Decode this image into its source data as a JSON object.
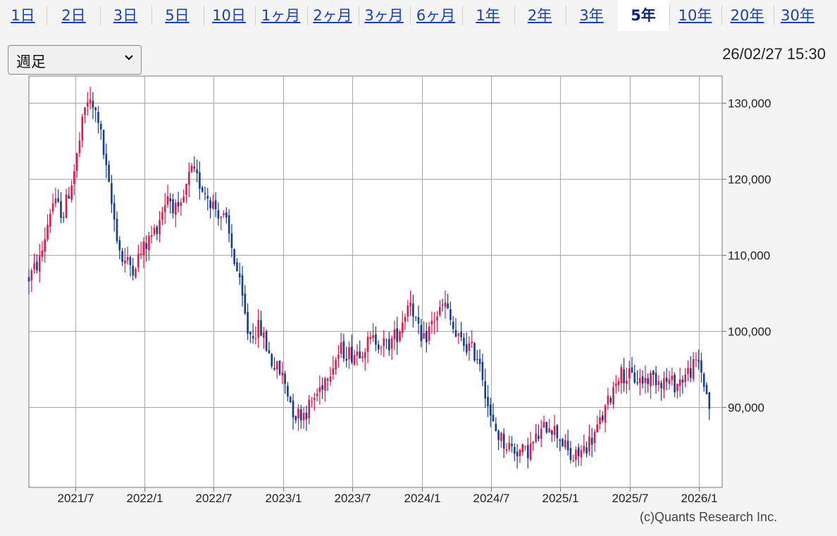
{
  "tabs": [
    {
      "label": "1日",
      "active": false
    },
    {
      "label": "2日",
      "active": false
    },
    {
      "label": "3日",
      "active": false
    },
    {
      "label": "5日",
      "active": false
    },
    {
      "label": "10日",
      "active": false
    },
    {
      "label": "1ヶ月",
      "active": false
    },
    {
      "label": "2ヶ月",
      "active": false
    },
    {
      "label": "3ヶ月",
      "active": false
    },
    {
      "label": "6ヶ月",
      "active": false
    },
    {
      "label": "1年",
      "active": false
    },
    {
      "label": "2年",
      "active": false
    },
    {
      "label": "3年",
      "active": false
    },
    {
      "label": "5年",
      "active": true
    },
    {
      "label": "10年",
      "active": false
    },
    {
      "label": "20年",
      "active": false
    },
    {
      "label": "30年",
      "active": false
    }
  ],
  "interval_select": {
    "value": "週足"
  },
  "timestamp": "26/02/27 15:30",
  "copyright": "(c)Quants Research Inc.",
  "colors": {
    "up": "#e8174a",
    "down": "#123c96",
    "grid": "#a8a8a8",
    "plot_bg": "#ffffff"
  },
  "chart_data": {
    "type": "candlestick",
    "x_ticks": [
      "2021/7",
      "2022/1",
      "2022/7",
      "2023/1",
      "2023/7",
      "2024/1",
      "2024/7",
      "2025/1",
      "2025/7",
      "2026/1"
    ],
    "y_ticks": [
      "130,000",
      "120,000",
      "110,000",
      "100,000",
      "90,000"
    ],
    "y_tick_values": [
      130000,
      120000,
      110000,
      100000,
      90000
    ],
    "ylim": [
      79500,
      133500
    ],
    "x_range": [
      "2021/3",
      "2026/3"
    ],
    "grid": true,
    "weekly_close_path": [
      [
        "2021/3",
        107000
      ],
      [
        "2021/4",
        109500
      ],
      [
        "2021/5",
        117000
      ],
      [
        "2021/6",
        115500
      ],
      [
        "2021/7",
        121500
      ],
      [
        "2021/8",
        130500
      ],
      [
        "2021/9",
        128000
      ],
      [
        "2021/10",
        118000
      ],
      [
        "2021/11",
        109500
      ],
      [
        "2021/12",
        108500
      ],
      [
        "2022/1",
        111000
      ],
      [
        "2022/2",
        113500
      ],
      [
        "2022/3",
        118000
      ],
      [
        "2022/4",
        115000
      ],
      [
        "2022/5",
        121000
      ],
      [
        "2022/6",
        119000
      ],
      [
        "2022/7",
        116500
      ],
      [
        "2022/8",
        114500
      ],
      [
        "2022/9",
        108000
      ],
      [
        "2022/10",
        99500
      ],
      [
        "2022/11",
        100500
      ],
      [
        "2022/12",
        96000
      ],
      [
        "2023/1",
        94000
      ],
      [
        "2023/2",
        89000
      ],
      [
        "2023/3",
        89500
      ],
      [
        "2023/4",
        92000
      ],
      [
        "2023/5",
        95000
      ],
      [
        "2023/6",
        97500
      ],
      [
        "2023/7",
        97000
      ],
      [
        "2023/8",
        98000
      ],
      [
        "2023/9",
        99000
      ],
      [
        "2023/10",
        98000
      ],
      [
        "2023/11",
        100000
      ],
      [
        "2023/12",
        104500
      ],
      [
        "2024/1",
        98000
      ],
      [
        "2024/2",
        101500
      ],
      [
        "2024/3",
        103500
      ],
      [
        "2024/4",
        99000
      ],
      [
        "2024/5",
        98000
      ],
      [
        "2024/6",
        96500
      ],
      [
        "2024/7",
        88000
      ],
      [
        "2024/8",
        85500
      ],
      [
        "2024/9",
        84500
      ],
      [
        "2024/10",
        84000
      ],
      [
        "2024/11",
        86000
      ],
      [
        "2024/12",
        88000
      ],
      [
        "2025/1",
        86000
      ],
      [
        "2025/2",
        83000
      ],
      [
        "2025/3",
        84500
      ],
      [
        "2025/4",
        86500
      ],
      [
        "2025/5",
        90000
      ],
      [
        "2025/6",
        94500
      ],
      [
        "2025/7",
        94000
      ],
      [
        "2025/8",
        93500
      ],
      [
        "2025/9",
        94000
      ],
      [
        "2025/10",
        93500
      ],
      [
        "2025/11",
        93000
      ],
      [
        "2025/12",
        94500
      ],
      [
        "2026/1",
        96000
      ],
      [
        "2026/2",
        89500
      ]
    ]
  }
}
